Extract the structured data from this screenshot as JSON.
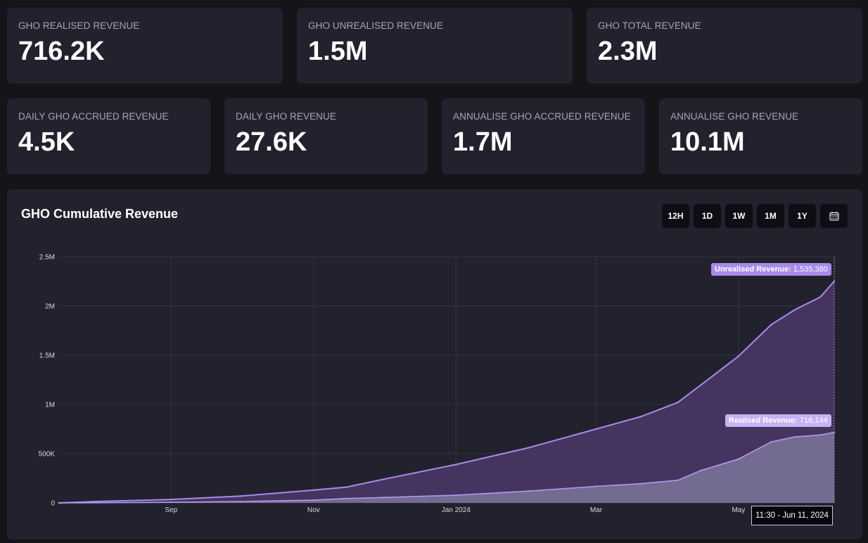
{
  "stats": [
    {
      "label": "GHO REALISED REVENUE",
      "value": "716.2K"
    },
    {
      "label": "GHO UNREALISED REVENUE",
      "value": "1.5M"
    },
    {
      "label": "GHO TOTAL REVENUE",
      "value": "2.3M"
    },
    {
      "label": "DAILY GHO ACCRUED REVENUE",
      "value": "4.5K"
    },
    {
      "label": "DAILY GHO REVENUE",
      "value": "27.6K"
    },
    {
      "label": "ANNUALISE GHO ACCRUED REVENUE",
      "value": "1.7M"
    },
    {
      "label": "ANNUALISE GHO REVENUE",
      "value": "10.1M"
    }
  ],
  "panel": {
    "title": "GHO Cumulative Revenue",
    "ranges": [
      "12H",
      "1D",
      "1W",
      "1M",
      "1Y"
    ],
    "calendar_icon": "calendar-icon"
  },
  "colors": {
    "background": "#141419",
    "card": "#22222e",
    "unrealised_line": "#a98ae8",
    "unrealised_fill": "#45345f",
    "realised_line": "#b39af0",
    "realised_fill": "#736b92",
    "unrealised_tip": "#a98ae8",
    "realised_tip": "#c5b2f5"
  },
  "tooltips": {
    "unrealised_label": "Unrealised Revenue:",
    "unrealised_value": "1,535,380",
    "realised_label": "Realised Revenue:",
    "realised_value": "716,144",
    "time": "11:30 - Jun 11, 2024"
  },
  "chart_data": {
    "type": "area",
    "stacked": true,
    "title": "GHO Cumulative Revenue",
    "xlabel": "",
    "ylabel": "",
    "x_ticks": [
      {
        "label": "Sep",
        "date": "2023-09-01"
      },
      {
        "label": "Nov",
        "date": "2023-11-01"
      },
      {
        "label": "Jan 2024",
        "date": "2024-01-01"
      },
      {
        "label": "Mar",
        "date": "2024-03-01"
      },
      {
        "label": "May",
        "date": "2024-05-01"
      }
    ],
    "y_ticks": [
      {
        "label": "0",
        "value": 0
      },
      {
        "label": "500K",
        "value": 500000
      },
      {
        "label": "1M",
        "value": 1000000
      },
      {
        "label": "1.5M",
        "value": 1500000
      },
      {
        "label": "2M",
        "value": 2000000
      },
      {
        "label": "2.5M",
        "value": 2500000
      }
    ],
    "xlim": [
      "2023-07-15",
      "2024-06-11"
    ],
    "ylim": [
      0,
      2500000
    ],
    "grid": true,
    "x": [
      "2023-07-15",
      "2023-08-01",
      "2023-09-01",
      "2023-10-01",
      "2023-11-01",
      "2023-11-15",
      "2023-12-01",
      "2024-01-01",
      "2024-02-01",
      "2024-03-01",
      "2024-03-20",
      "2024-04-05",
      "2024-04-15",
      "2024-05-01",
      "2024-05-15",
      "2024-05-25",
      "2024-06-05",
      "2024-06-11"
    ],
    "series": [
      {
        "name": "Realised Revenue",
        "values": [
          0,
          2000,
          6000,
          14000,
          28000,
          45000,
          55000,
          78000,
          120000,
          168000,
          195000,
          230000,
          330000,
          445000,
          620000,
          670000,
          690000,
          716144
        ]
      },
      {
        "name": "Unrealised Revenue",
        "values": [
          0,
          13000,
          29000,
          56000,
          102000,
          115000,
          185000,
          312000,
          440000,
          582000,
          680000,
          790000,
          870000,
          1045000,
          1190000,
          1290000,
          1400000,
          1535380
        ]
      }
    ]
  }
}
